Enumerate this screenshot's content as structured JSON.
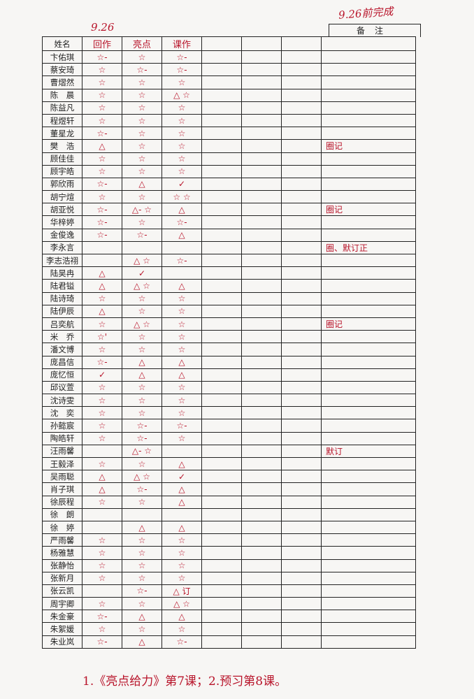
{
  "annotations": {
    "date_left": "9.26",
    "date_right": "9.26前完成"
  },
  "table": {
    "headers": [
      "姓名",
      "回作",
      "亮点",
      "课作",
      "",
      "",
      "",
      "备注"
    ],
    "rows": [
      {
        "name": "卞佑琪",
        "marks": [
          "☆-",
          "☆",
          "☆-"
        ],
        "remark": ""
      },
      {
        "name": "蔡安琦",
        "marks": [
          "☆",
          "☆-",
          "☆-"
        ],
        "remark": ""
      },
      {
        "name": "曹熠然",
        "marks": [
          "☆",
          "☆",
          "☆"
        ],
        "remark": ""
      },
      {
        "name": "陈　晨",
        "marks": [
          "☆",
          "☆",
          "△ ☆"
        ],
        "remark": ""
      },
      {
        "name": "陈益凡",
        "marks": [
          "☆",
          "☆",
          "☆"
        ],
        "remark": ""
      },
      {
        "name": "程煜轩",
        "marks": [
          "☆",
          "☆",
          "☆"
        ],
        "remark": ""
      },
      {
        "name": "董星龙",
        "marks": [
          "☆-",
          "☆",
          "☆"
        ],
        "remark": ""
      },
      {
        "name": "樊　浩",
        "marks": [
          "△",
          "☆",
          "☆"
        ],
        "remark": "圈记"
      },
      {
        "name": "顾佳佳",
        "marks": [
          "☆",
          "☆",
          "☆"
        ],
        "remark": ""
      },
      {
        "name": "顾宇皓",
        "marks": [
          "☆",
          "☆",
          "☆"
        ],
        "remark": ""
      },
      {
        "name": "郭欣雨",
        "marks": [
          "☆-",
          "△",
          "✓"
        ],
        "remark": ""
      },
      {
        "name": "胡宁煊",
        "marks": [
          "☆",
          "☆",
          "☆ ☆"
        ],
        "remark": ""
      },
      {
        "name": "胡亚悦",
        "marks": [
          "☆-",
          "△- ☆",
          "△"
        ],
        "remark": "圈记"
      },
      {
        "name": "华梓婷",
        "marks": [
          "☆-",
          "☆",
          "☆-"
        ],
        "remark": ""
      },
      {
        "name": "金俊逸",
        "marks": [
          "☆-",
          "☆-",
          "△"
        ],
        "remark": ""
      },
      {
        "name": "李永言",
        "marks": [
          "",
          "",
          ""
        ],
        "remark": "圈、默订正"
      },
      {
        "name": "李志浩祤",
        "marks": [
          "",
          "△ ☆",
          "☆-"
        ],
        "remark": ""
      },
      {
        "name": "陆昊冉",
        "marks": [
          "△",
          "✓",
          ""
        ],
        "remark": ""
      },
      {
        "name": "陆君镒",
        "marks": [
          "△",
          "△ ☆",
          "△"
        ],
        "remark": ""
      },
      {
        "name": "陆诗琦",
        "marks": [
          "☆",
          "☆",
          "☆"
        ],
        "remark": ""
      },
      {
        "name": "陆伊辰",
        "marks": [
          "△",
          "☆",
          "☆"
        ],
        "remark": ""
      },
      {
        "name": "吕奕航",
        "marks": [
          "☆",
          "△ ☆",
          "☆"
        ],
        "remark": "圈记"
      },
      {
        "name": "米　乔",
        "marks": [
          "☆'",
          "☆",
          "☆"
        ],
        "remark": ""
      },
      {
        "name": "潘文博",
        "marks": [
          "☆",
          "☆",
          "☆"
        ],
        "remark": ""
      },
      {
        "name": "庞昌信",
        "marks": [
          "☆-",
          "△",
          "△"
        ],
        "remark": ""
      },
      {
        "name": "庞忆恒",
        "marks": [
          "✓",
          "△",
          "△"
        ],
        "remark": ""
      },
      {
        "name": "邱议萱",
        "marks": [
          "☆",
          "☆",
          "☆"
        ],
        "remark": ""
      },
      {
        "name": "沈诗雯",
        "marks": [
          "☆",
          "☆",
          "☆"
        ],
        "remark": ""
      },
      {
        "name": "沈　奕",
        "marks": [
          "☆",
          "☆",
          "☆"
        ],
        "remark": ""
      },
      {
        "name": "孙懿宸",
        "marks": [
          "☆",
          "☆-",
          "☆-"
        ],
        "remark": ""
      },
      {
        "name": "陶皓轩",
        "marks": [
          "☆",
          "☆-",
          "☆"
        ],
        "remark": ""
      },
      {
        "name": "汪雨馨",
        "marks": [
          "",
          "△- ☆",
          ""
        ],
        "remark": "默订"
      },
      {
        "name": "王毅泽",
        "marks": [
          "☆",
          "☆",
          "△"
        ],
        "remark": ""
      },
      {
        "name": "吴雨聪",
        "marks": [
          "△",
          "△ ☆",
          "✓"
        ],
        "remark": ""
      },
      {
        "name": "肖子琪",
        "marks": [
          "△",
          "☆-",
          "△"
        ],
        "remark": ""
      },
      {
        "name": "徐辰程",
        "marks": [
          "☆",
          "☆",
          "△"
        ],
        "remark": ""
      },
      {
        "name": "徐　朗",
        "marks": [
          "",
          "",
          ""
        ],
        "remark": ""
      },
      {
        "name": "徐　婷",
        "marks": [
          "",
          "△",
          "△"
        ],
        "remark": ""
      },
      {
        "name": "严雨馨",
        "marks": [
          "☆",
          "☆",
          "☆"
        ],
        "remark": ""
      },
      {
        "name": "杨雅慧",
        "marks": [
          "☆",
          "☆",
          "☆"
        ],
        "remark": ""
      },
      {
        "name": "张静怡",
        "marks": [
          "☆",
          "☆",
          "☆"
        ],
        "remark": ""
      },
      {
        "name": "张新月",
        "marks": [
          "☆",
          "☆",
          "☆"
        ],
        "remark": ""
      },
      {
        "name": "张云凯",
        "marks": [
          "",
          "☆-",
          "△ 订"
        ],
        "remark": ""
      },
      {
        "name": "周宇卿",
        "marks": [
          "☆",
          "☆",
          "△ ☆"
        ],
        "remark": ""
      },
      {
        "name": "朱金豪",
        "marks": [
          "☆-",
          "△",
          "△"
        ],
        "remark": ""
      },
      {
        "name": "朱絮媛",
        "marks": [
          "☆",
          "☆",
          "☆"
        ],
        "remark": ""
      },
      {
        "name": "朱业岚",
        "marks": [
          "☆-",
          "△",
          "☆-"
        ],
        "remark": ""
      }
    ]
  },
  "footer_note": "1.《亮点给力》第7课；2.预习第8课。",
  "colors": {
    "ink_red": "#b8142a",
    "grid": "#222222",
    "paper": "#f7f6f4"
  }
}
